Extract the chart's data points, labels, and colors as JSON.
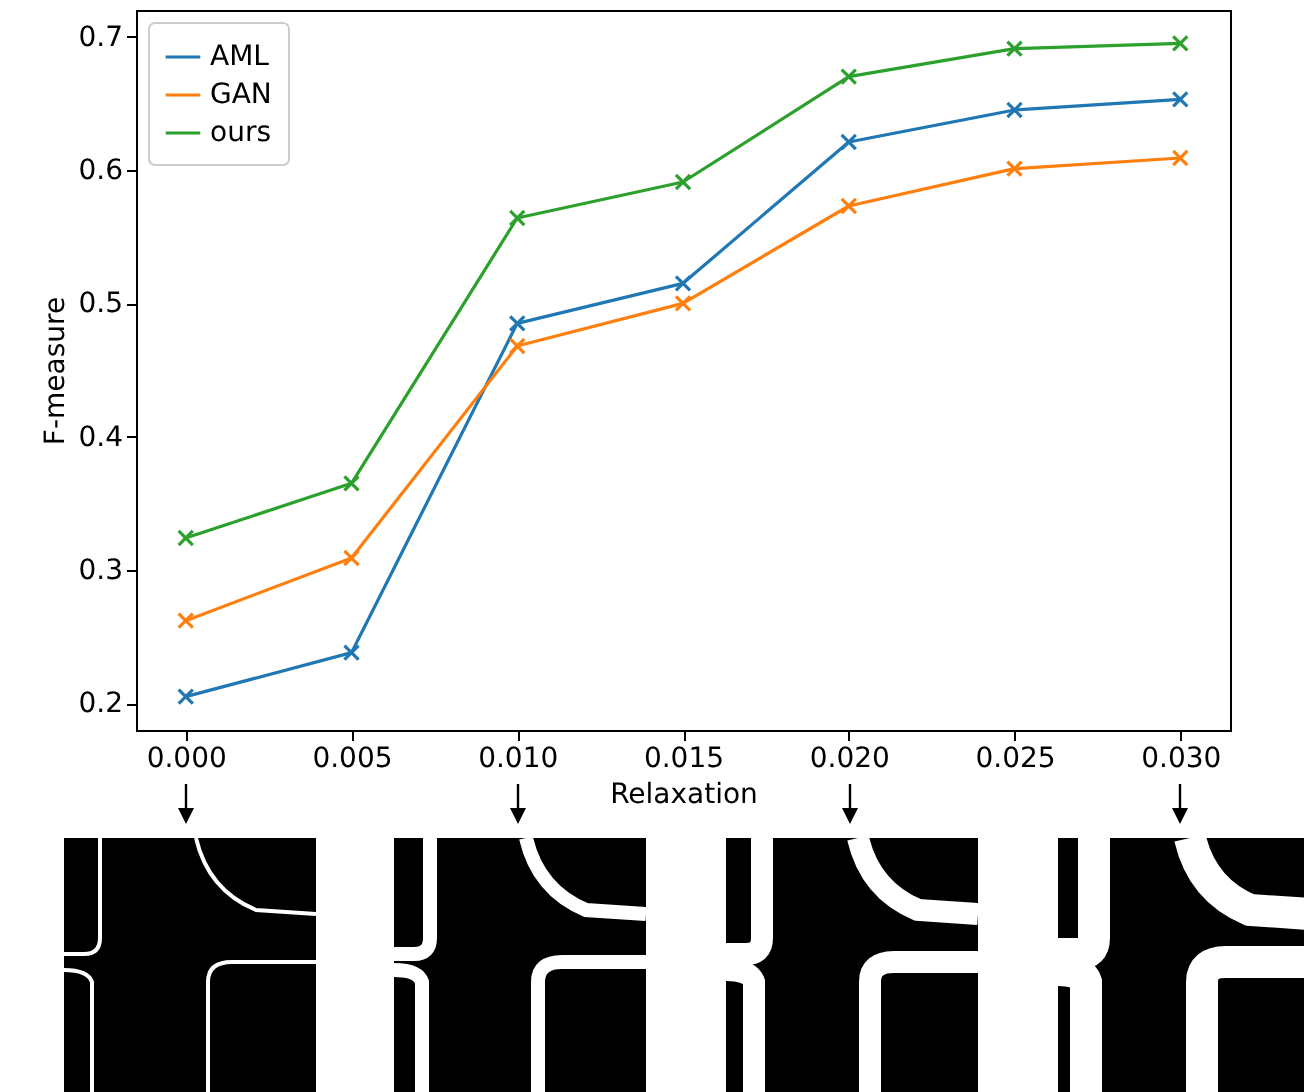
{
  "chart_data": {
    "type": "line",
    "xlabel": "Relaxation",
    "ylabel": "F-measure",
    "x": [
      0,
      0.005,
      0.01,
      0.015,
      0.02,
      0.025,
      0.03
    ],
    "series": [
      {
        "name": "AML",
        "color": "#1f77b4",
        "values": [
          0.205,
          0.238,
          0.485,
          0.515,
          0.621,
          0.645,
          0.653
        ]
      },
      {
        "name": "GAN",
        "color": "#ff7f0e",
        "values": [
          0.262,
          0.309,
          0.468,
          0.5,
          0.573,
          0.601,
          0.609
        ]
      },
      {
        "name": "ours",
        "color": "#2ca02c",
        "values": [
          0.324,
          0.365,
          0.564,
          0.591,
          0.67,
          0.691,
          0.695
        ]
      }
    ],
    "xlim": [
      -0.0015,
      0.0315
    ],
    "xticks": [
      {
        "value": 0,
        "label": "0.000"
      },
      {
        "value": 0.005,
        "label": "0.005"
      },
      {
        "value": 0.01,
        "label": "0.010"
      },
      {
        "value": 0.015,
        "label": "0.015"
      },
      {
        "value": 0.02,
        "label": "0.020"
      },
      {
        "value": 0.025,
        "label": "0.025"
      },
      {
        "value": 0.03,
        "label": "0.030"
      }
    ],
    "ylim": [
      0.18,
      0.72
    ],
    "yticks": [
      0.2,
      0.3,
      0.4,
      0.5,
      0.6,
      0.7
    ],
    "grid": false,
    "legend": "top left",
    "marker": "cross",
    "line_style": "solid"
  }
}
